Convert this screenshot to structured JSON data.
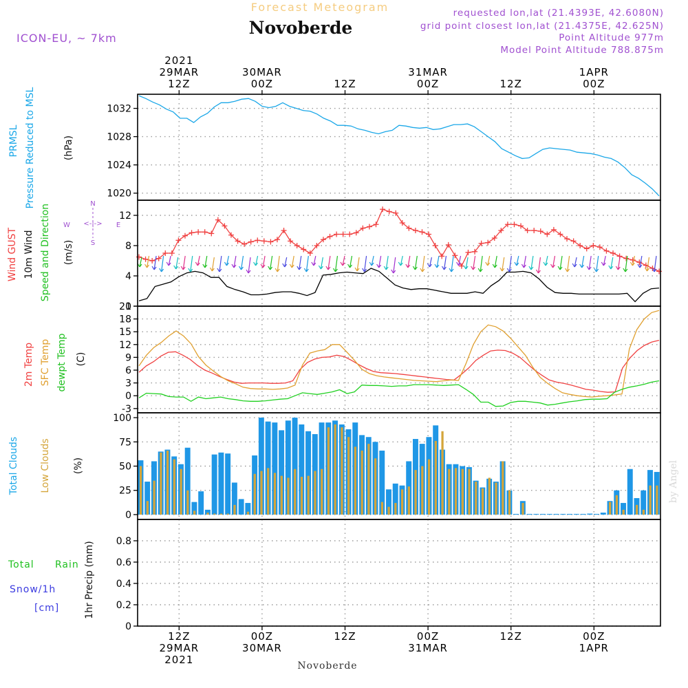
{
  "header": {
    "title": "Forecast Meteogram",
    "location": "Novoberde",
    "model": "ICON-EU, ~ 7km",
    "requested": "requested lon,lat (21.4393E, 42.6080N)",
    "grid_point": "grid point closest lon,lat (21.4375E, 42.625N)",
    "point_altitude": "Point Altitude 977m",
    "model_altitude": "Model Point Altitude 788.875m",
    "footer_location": "Novoberde",
    "watermark": "by Angel"
  },
  "time_axis": {
    "start": "2021-03-29 06Z",
    "step_hours": 1,
    "major_ticks": [
      {
        "hours": 6,
        "top": [
          "2021",
          "29MAR",
          "12Z"
        ],
        "bottom": [
          "12Z",
          "29MAR",
          "2021"
        ]
      },
      {
        "hours": 18,
        "top": [
          "30MAR",
          "00Z"
        ],
        "bottom": [
          "00Z",
          "30MAR"
        ]
      },
      {
        "hours": 30,
        "top": [
          "12Z"
        ],
        "bottom": [
          "12Z"
        ]
      },
      {
        "hours": 42,
        "top": [
          "31MAR",
          "00Z"
        ],
        "bottom": [
          "00Z",
          "31MAR"
        ]
      },
      {
        "hours": 54,
        "top": [
          "12Z"
        ],
        "bottom": [
          "12Z"
        ]
      },
      {
        "hours": 66,
        "top": [
          "1APR",
          "00Z"
        ],
        "bottom": [
          "00Z",
          "1APR"
        ]
      }
    ]
  },
  "labels": {
    "pressure": [
      "PRMSL",
      "Pressure Reduced to MSL",
      "(hPa)"
    ],
    "wind": [
      "Wind GUST",
      "10m Wind",
      "Speed and Direction",
      "(m/s)"
    ],
    "compass": {
      "n": "N",
      "s": "S",
      "e": "E",
      "w": "W",
      "arrows": "<-|->"
    },
    "temp": [
      "2m Temp",
      "SFC Temp",
      "dewpt Temp",
      "(C)"
    ],
    "clouds": [
      "Total Clouds",
      "Low Clouds",
      "(%)"
    ],
    "precip": [
      "Total",
      "Rain",
      "Snow/1h",
      "[cm]",
      "1hr Precip (mm)"
    ]
  },
  "colors": {
    "pressure": "#1aa7e8",
    "gust": "#f04040",
    "wind": "#000000",
    "temp2m": "#f04040",
    "sfc": "#e0a030",
    "dewpt": "#20d020",
    "total_cloud": "#1f97e6",
    "low_cloud": "#d4a53a",
    "green_label": "#20c020",
    "blue_label": "#3a3ae0",
    "compass": "#a050d0",
    "meta": "#a050d0",
    "title_faded": "#f5cc80"
  },
  "chart_data": [
    {
      "type": "line",
      "panel": "pressure",
      "ylabel": "(hPa)",
      "ylim": [
        1019,
        1034
      ],
      "yticks": [
        1020,
        1024,
        1028,
        1032
      ],
      "grid": true,
      "series": [
        {
          "name": "PRMSL",
          "values": [
            1033.8,
            1033.4,
            1032.9,
            1032.5,
            1031.9,
            1031.5,
            1030.6,
            1030.6,
            1030.0,
            1030.8,
            1031.3,
            1032.2,
            1032.8,
            1032.8,
            1033.0,
            1033.3,
            1033.4,
            1033.0,
            1032.3,
            1032.1,
            1032.3,
            1032.8,
            1032.3,
            1032.0,
            1031.7,
            1031.6,
            1031.2,
            1030.6,
            1030.2,
            1029.6,
            1029.6,
            1029.5,
            1029.1,
            1028.9,
            1028.6,
            1028.4,
            1028.7,
            1028.9,
            1029.6,
            1029.5,
            1029.3,
            1029.2,
            1029.3,
            1029.0,
            1029.1,
            1029.4,
            1029.7,
            1029.7,
            1029.8,
            1029.4,
            1028.7,
            1028.0,
            1027.3,
            1026.3,
            1025.8,
            1025.3,
            1024.9,
            1025.0,
            1025.6,
            1026.2,
            1026.4,
            1026.3,
            1026.2,
            1026.1,
            1025.8,
            1025.7,
            1025.6,
            1025.4,
            1025.1,
            1024.9,
            1024.4,
            1023.6,
            1022.6,
            1022.1,
            1021.4,
            1020.6,
            1019.6
          ]
        }
      ]
    },
    {
      "type": "line",
      "panel": "wind",
      "ylabel": "(m/s)",
      "ylim": [
        0,
        14
      ],
      "yticks": [
        0,
        4,
        8,
        12
      ],
      "grid": true,
      "series": [
        {
          "name": "Wind GUST",
          "values": [
            6.5,
            6.2,
            6.0,
            6.3,
            7.0,
            7.0,
            8.7,
            9.3,
            9.7,
            9.8,
            9.8,
            9.6,
            11.4,
            10.6,
            9.4,
            8.6,
            8.2,
            8.5,
            8.7,
            8.6,
            8.5,
            8.8,
            10.0,
            8.6,
            8.0,
            7.5,
            7.0,
            8.0,
            8.8,
            9.2,
            9.5,
            9.5,
            9.5,
            9.7,
            10.3,
            10.5,
            10.8,
            12.8,
            12.5,
            12.3,
            11.0,
            10.3,
            10.0,
            9.8,
            9.5,
            8.0,
            6.6,
            8.1,
            6.7,
            5.3,
            7.1,
            7.2,
            8.3,
            8.4,
            9.0,
            10.0,
            10.8,
            10.8,
            10.6,
            10.0,
            10.0,
            9.9,
            9.5,
            10.1,
            9.5,
            8.9,
            8.6,
            8.0,
            7.6,
            8.0,
            7.8,
            7.3,
            7.0,
            6.6,
            6.3,
            6.1,
            5.8,
            5.4,
            5.0,
            4.6
          ]
        },
        {
          "name": "10m Wind",
          "values": [
            0.7,
            1.0,
            2.6,
            2.9,
            3.2,
            3.9,
            4.4,
            4.6,
            4.4,
            3.8,
            3.8,
            2.6,
            2.2,
            1.9,
            1.5,
            1.5,
            1.6,
            1.8,
            1.9,
            1.9,
            1.7,
            1.4,
            1.8,
            4.1,
            4.2,
            4.4,
            4.5,
            4.4,
            4.3,
            5.0,
            4.6,
            3.7,
            2.8,
            2.4,
            2.2,
            2.3,
            2.3,
            2.1,
            1.9,
            1.7,
            1.7,
            1.7,
            1.9,
            1.7,
            2.7,
            3.4,
            4.5,
            4.5,
            4.6,
            4.4,
            3.6,
            2.5,
            1.8,
            1.7,
            1.7,
            1.6,
            1.6,
            1.6,
            1.6,
            1.6,
            1.6,
            1.7,
            0.6,
            1.7,
            2.3,
            2.4
          ]
        }
      ]
    },
    {
      "type": "line",
      "panel": "temperature",
      "ylabel": "(C)",
      "ylim": [
        -4,
        21
      ],
      "yticks": [
        -3,
        0,
        3,
        6,
        9,
        12,
        15,
        18,
        21
      ],
      "grid": true,
      "series": [
        {
          "name": "2m Temp",
          "values": [
            5.5,
            7.0,
            8.0,
            9.3,
            10.2,
            10.3,
            9.5,
            8.5,
            7.1,
            6.0,
            5.3,
            4.5,
            3.8,
            3.2,
            2.9,
            3.0,
            3.0,
            3.0,
            2.9,
            2.9,
            3.0,
            3.5,
            6.2,
            7.8,
            8.6,
            9.0,
            9.1,
            9.5,
            9.2,
            8.3,
            7.3,
            6.4,
            5.7,
            5.4,
            5.3,
            5.2,
            5.0,
            4.8,
            4.6,
            4.4,
            4.2,
            4.0,
            3.8,
            3.7,
            5.0,
            6.5,
            8.3,
            9.5,
            10.5,
            10.7,
            10.6,
            10.0,
            9.0,
            7.5,
            6.0,
            4.8,
            3.7,
            3.2,
            2.9,
            2.5,
            2.0,
            1.5,
            1.3,
            1.0,
            0.8,
            0.9,
            6.5,
            8.8,
            10.6,
            11.8,
            12.6,
            13.0
          ]
        },
        {
          "name": "SFC Temp",
          "values": [
            7.0,
            9.5,
            11.3,
            12.5,
            14.0,
            15.2,
            14.0,
            12.2,
            9.2,
            7.2,
            5.8,
            4.5,
            3.5,
            2.8,
            2.0,
            1.7,
            1.6,
            1.6,
            1.5,
            1.6,
            1.8,
            2.5,
            7.2,
            10.0,
            10.5,
            10.8,
            12.0,
            12.0,
            10.2,
            8.3,
            6.2,
            5.2,
            4.7,
            4.4,
            4.2,
            4.0,
            3.8,
            3.6,
            3.5,
            3.4,
            3.3,
            3.5,
            3.7,
            3.6,
            7.5,
            12.0,
            15.0,
            16.6,
            16.2,
            15.2,
            13.5,
            11.5,
            9.5,
            6.7,
            4.3,
            2.9,
            1.7,
            0.7,
            0.3,
            0.0,
            -0.2,
            -0.3,
            -0.1,
            0.0,
            0.2,
            0.4,
            11.0,
            15.5,
            18.0,
            19.5,
            20.0
          ]
        },
        {
          "name": "dewpt Temp",
          "values": [
            -0.5,
            0.6,
            0.5,
            0.4,
            -0.2,
            -0.3,
            -0.3,
            -1.3,
            -0.3,
            -0.7,
            -0.5,
            -0.3,
            -0.7,
            -0.9,
            -1.2,
            -1.3,
            -1.3,
            -1.2,
            -1.0,
            -0.8,
            -0.7,
            0.0,
            0.7,
            0.5,
            0.3,
            0.6,
            0.9,
            1.4,
            0.5,
            0.9,
            2.5,
            2.4,
            2.4,
            2.3,
            2.2,
            2.3,
            2.3,
            2.6,
            2.6,
            2.6,
            2.5,
            2.4,
            2.5,
            2.6,
            1.5,
            0.3,
            -1.5,
            -1.5,
            -2.5,
            -2.4,
            -1.6,
            -1.3,
            -1.3,
            -1.5,
            -1.7,
            -2.2,
            -2.0,
            -1.7,
            -1.4,
            -1.2,
            -0.9,
            -0.8,
            -0.8,
            -0.7,
            0.8,
            1.5,
            2.0,
            2.3,
            2.7,
            3.2,
            3.5
          ]
        }
      ]
    },
    {
      "type": "bar",
      "panel": "clouds",
      "ylabel": "(%)",
      "ylim": [
        -5,
        105
      ],
      "yticks": [
        0,
        25,
        50,
        75,
        100
      ],
      "grid": true,
      "series": [
        {
          "name": "Total Clouds",
          "values": [
            56,
            34,
            55,
            65,
            67,
            60,
            52,
            69,
            13,
            24,
            5,
            62,
            64,
            63,
            33,
            16,
            12,
            61,
            100,
            96,
            95,
            87,
            97,
            100,
            93,
            86,
            83,
            95,
            95,
            97,
            93,
            88,
            95,
            82,
            80,
            75,
            66,
            26,
            32,
            30,
            55,
            78,
            73,
            80,
            92,
            67,
            52,
            52,
            50,
            49,
            35,
            28,
            37,
            34,
            55,
            25,
            0,
            14,
            0,
            0,
            0,
            0,
            0,
            0,
            0,
            0,
            0,
            1,
            0,
            2,
            14,
            25,
            12,
            47,
            17,
            25,
            46,
            44
          ]
        },
        {
          "name": "Low Clouds",
          "values": [
            50,
            14,
            35,
            64,
            66,
            57,
            47,
            25,
            4,
            0,
            2,
            1,
            1,
            1,
            10,
            0,
            3,
            42,
            45,
            48,
            43,
            40,
            38,
            47,
            39,
            40,
            45,
            47,
            90,
            93,
            90,
            80,
            70,
            66,
            73,
            58,
            13,
            8,
            12,
            26,
            29,
            46,
            50,
            57,
            76,
            86,
            47,
            48,
            47,
            47,
            34,
            27,
            38,
            33,
            55,
            25,
            0,
            12,
            0,
            0,
            0,
            0,
            0,
            0,
            0,
            0,
            0,
            0,
            0,
            0,
            13,
            20,
            5,
            0,
            10,
            5,
            30,
            30
          ]
        }
      ]
    },
    {
      "type": "bar",
      "panel": "precip",
      "ylabel": "1hr Precip (mm)",
      "ylim": [
        0,
        1
      ],
      "yticks": [
        0,
        0.2,
        0.4,
        0.6,
        0.8
      ],
      "grid": true,
      "series": []
    }
  ]
}
